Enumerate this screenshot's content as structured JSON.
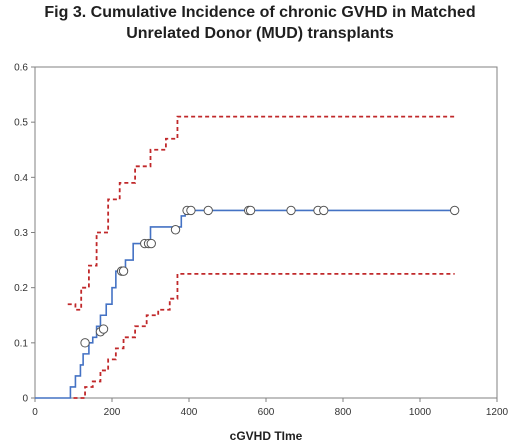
{
  "title_line1": "Fig 3. Cumulative Incidence of chronic GVHD in Matched",
  "title_line2": "Unrelated Donor (MUD) transplants",
  "colors": {
    "estimate": "#4472c4",
    "ci": "#c0282a",
    "axis": "#808080"
  },
  "chart_data": {
    "type": "line",
    "title": "Fig 3. Cumulative Incidence of chronic GVHD in Matched Unrelated Donor (MUD) transplants",
    "xlabel": "cGVHD TIme",
    "ylabel": "",
    "xlim": [
      0,
      1200
    ],
    "ylim": [
      0,
      0.6
    ],
    "xticks": [
      0,
      200,
      400,
      600,
      800,
      1000,
      1200
    ],
    "yticks": [
      0,
      0.1,
      0.2,
      0.3,
      0.4,
      0.5,
      0.6
    ],
    "grid": false,
    "legend": "none",
    "series": [
      {
        "style": "solid step",
        "color": "#4472c4",
        "x": [
          0,
          92,
          105,
          118,
          125,
          140,
          150,
          160,
          170,
          185,
          200,
          210,
          235,
          255,
          275,
          300,
          340,
          360,
          380,
          390,
          1090
        ],
        "y": [
          0,
          0.02,
          0.04,
          0.06,
          0.08,
          0.1,
          0.11,
          0.13,
          0.15,
          0.17,
          0.2,
          0.23,
          0.25,
          0.28,
          0.28,
          0.31,
          0.31,
          0.31,
          0.33,
          0.34,
          0.34
        ]
      },
      {
        "style": "dashed step",
        "color": "#c0282a",
        "x": [
          85,
          105,
          120,
          140,
          160,
          190,
          220,
          260,
          300,
          340,
          370,
          1090
        ],
        "y": [
          0.17,
          0.16,
          0.2,
          0.24,
          0.3,
          0.36,
          0.39,
          0.42,
          0.45,
          0.47,
          0.51,
          0.51
        ]
      },
      {
        "style": "dashed step",
        "color": "#c0282a",
        "x": [
          100,
          130,
          150,
          170,
          190,
          210,
          230,
          260,
          290,
          320,
          350,
          370,
          1090
        ],
        "y": [
          0,
          0.02,
          0.03,
          0.05,
          0.07,
          0.09,
          0.11,
          0.13,
          0.15,
          0.16,
          0.18,
          0.225,
          0.225
        ]
      }
    ],
    "censored_points": {
      "x": [
        130,
        170,
        178,
        225,
        230,
        285,
        295,
        302,
        365,
        395,
        405,
        450,
        555,
        560,
        665,
        735,
        750,
        1090
      ],
      "y": [
        0.1,
        0.12,
        0.125,
        0.23,
        0.23,
        0.28,
        0.28,
        0.28,
        0.305,
        0.34,
        0.34,
        0.34,
        0.34,
        0.34,
        0.34,
        0.34,
        0.34,
        0.34
      ]
    }
  }
}
